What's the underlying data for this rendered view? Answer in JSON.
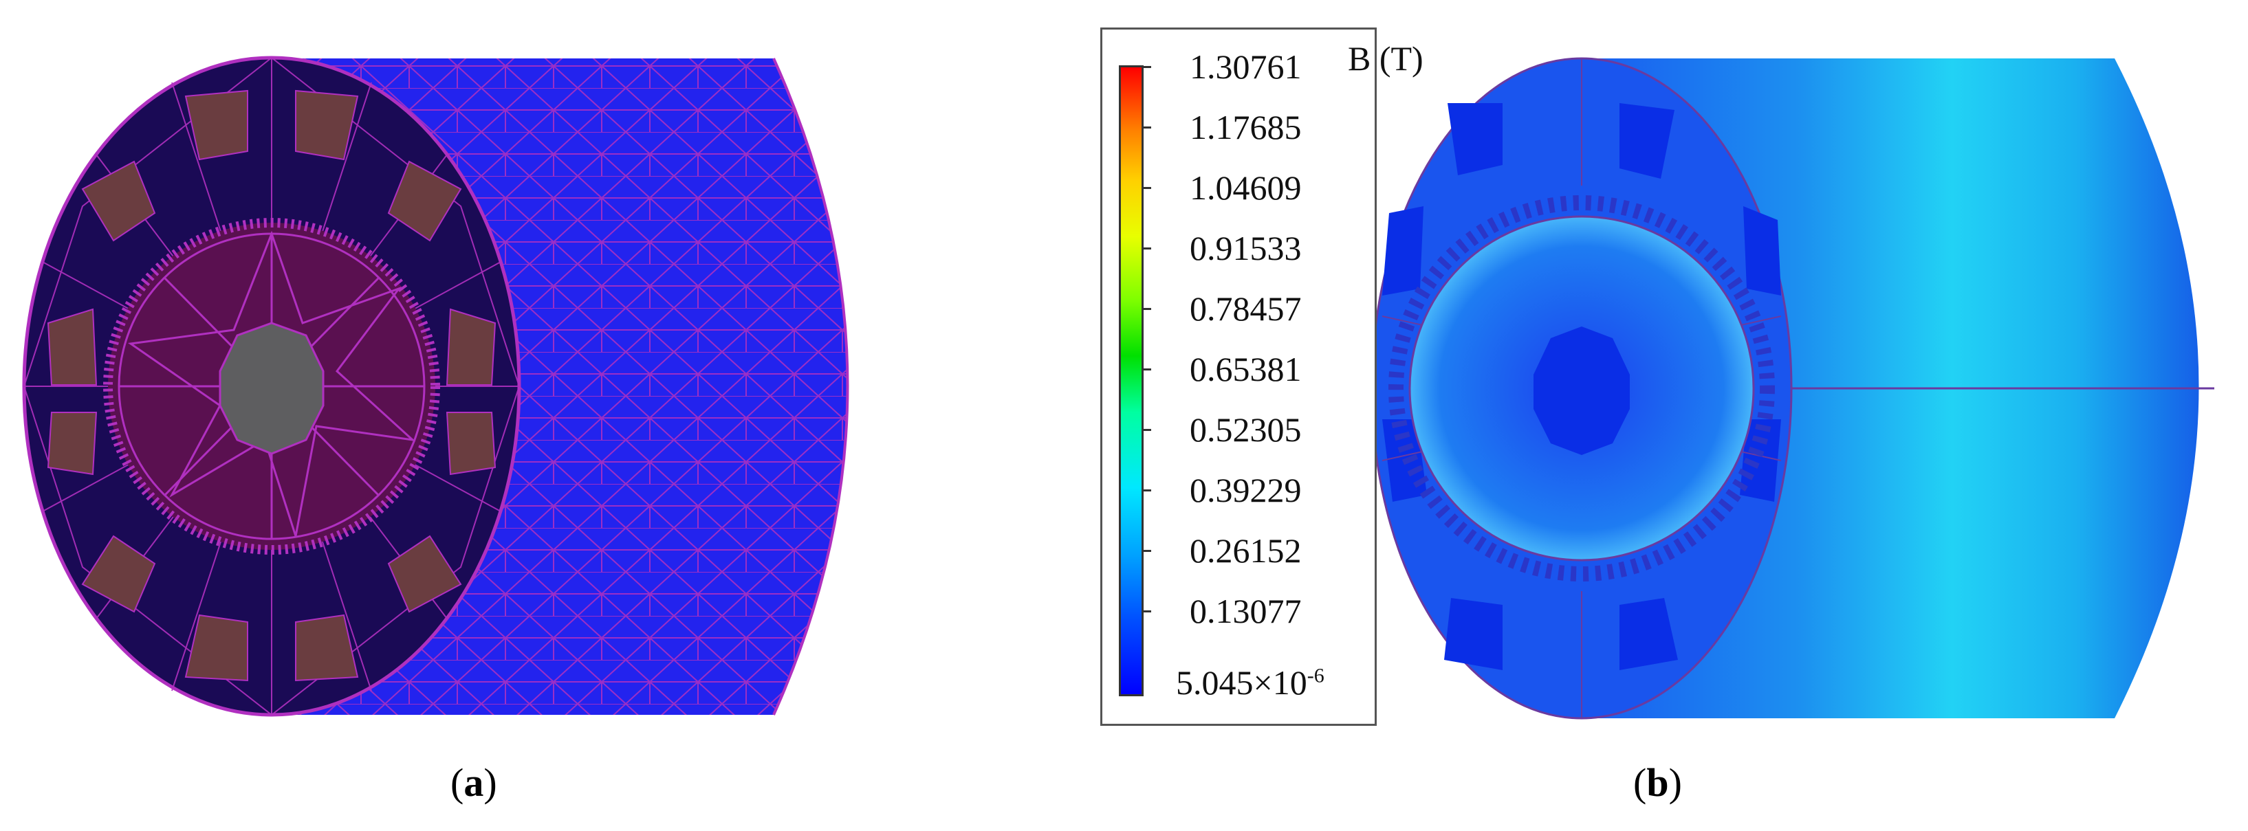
{
  "panels": [
    {
      "id": "a",
      "caption_open": "(",
      "caption_letter": "a",
      "caption_close": ")"
    },
    {
      "id": "b",
      "caption_open": "(",
      "caption_letter": "b",
      "caption_close": ")"
    }
  ],
  "legend": {
    "unit": "B (T)",
    "levels": [
      "1.30761",
      "1.17685",
      "1.04609",
      "0.91533",
      "0.78457",
      "0.65381",
      "0.52305",
      "0.39229",
      "0.26152",
      "0.13077"
    ],
    "min_mantissa": "5.045×10",
    "min_exponent": "-6"
  },
  "colors": {
    "mesh_blue": "#2323ee",
    "mesh_line": "#b030c0",
    "face_dark": "#1a0a55",
    "magnet": "#6a3d40",
    "field_low": "#0a2ee6",
    "field_mid": "#1ec8f0",
    "field_high": "#ff0000"
  }
}
